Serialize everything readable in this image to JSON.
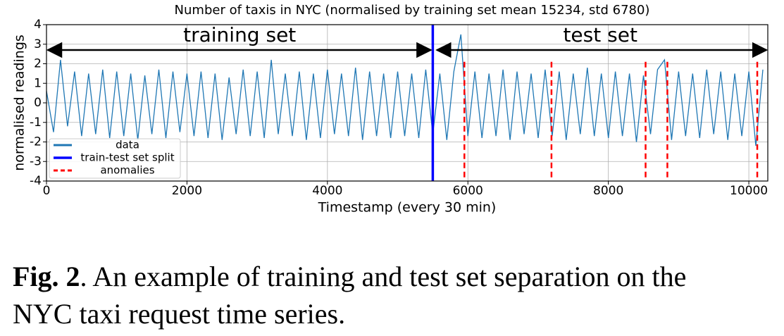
{
  "chart_data": {
    "type": "line",
    "title": "Number of taxis in NYC (normalised by training set mean 15234, std 6780)",
    "xlabel": "Timestamp (every 30 min)",
    "ylabel": "normalised readings",
    "xlim": [
      0,
      10270
    ],
    "ylim": [
      -4,
      4
    ],
    "xticks": [
      0,
      2000,
      4000,
      6000,
      8000,
      10000
    ],
    "yticks": [
      -4,
      -3,
      -2,
      -1,
      0,
      1,
      2,
      3,
      4
    ],
    "grid": true,
    "legend": "lower left",
    "annotations": [
      "training set",
      "test set"
    ],
    "series": [
      {
        "name": "data",
        "color": "#1f77b4",
        "x": [
          0,
          100,
          200,
          300,
          400,
          500,
          600,
          700,
          800,
          900,
          1000,
          1100,
          1200,
          1300,
          1400,
          1500,
          1600,
          1700,
          1800,
          1900,
          2000,
          2100,
          2200,
          2300,
          2400,
          2500,
          2600,
          2700,
          2800,
          2900,
          3000,
          3100,
          3200,
          3300,
          3400,
          3500,
          3600,
          3700,
          3800,
          3900,
          4000,
          4100,
          4200,
          4300,
          4400,
          4500,
          4600,
          4700,
          4800,
          4900,
          5000,
          5100,
          5200,
          5300,
          5400,
          5500,
          5600,
          5700,
          5800,
          5900,
          6000,
          6100,
          6200,
          6300,
          6400,
          6500,
          6600,
          6700,
          6800,
          6900,
          7000,
          7100,
          7200,
          7300,
          7400,
          7500,
          7600,
          7700,
          7800,
          7900,
          8000,
          8100,
          8200,
          8300,
          8400,
          8500,
          8600,
          8700,
          8800,
          8900,
          9000,
          9100,
          9200,
          9300,
          9400,
          9500,
          9600,
          9700,
          9800,
          9900,
          10000,
          10100,
          10200
        ],
        "values": [
          0.6,
          -1.5,
          2.2,
          -1.2,
          1.6,
          -1.7,
          1.5,
          -1.6,
          1.7,
          -1.8,
          1.6,
          -1.7,
          1.5,
          -1.9,
          1.4,
          -1.6,
          1.7,
          -1.8,
          1.6,
          -1.5,
          1.5,
          -1.7,
          1.6,
          -1.8,
          1.5,
          -1.9,
          1.3,
          -1.6,
          1.7,
          -1.7,
          1.6,
          -1.8,
          2.2,
          -1.6,
          1.5,
          -1.7,
          1.6,
          -1.9,
          1.5,
          -1.8,
          1.7,
          -1.6,
          1.5,
          -1.7,
          1.8,
          -1.9,
          1.6,
          -1.7,
          1.5,
          -1.8,
          1.6,
          -1.7,
          1.5,
          -1.8,
          1.7,
          -1.6,
          1.5,
          -1.9,
          1.6,
          3.5,
          -1.7,
          1.6,
          -1.8,
          1.5,
          -1.7,
          1.7,
          -1.9,
          1.6,
          -1.6,
          1.5,
          -1.8,
          1.7,
          -1.7,
          1.6,
          -1.9,
          1.5,
          -1.6,
          1.8,
          -1.7,
          1.5,
          -1.8,
          1.6,
          -1.7,
          1.5,
          -2.0,
          1.4,
          -1.6,
          1.7,
          2.2,
          -1.9,
          1.6,
          -1.7,
          1.5,
          -1.8,
          1.7,
          -1.6,
          1.6,
          -1.9,
          1.5,
          -1.7,
          1.6,
          -2.2,
          1.7
        ]
      }
    ],
    "split": {
      "name": "train-test set split",
      "color": "#0000ff",
      "x": 5500
    },
    "anomalies": {
      "name": "anomalies",
      "color": "#ff0000",
      "x": [
        5950,
        7190,
        8530,
        8840,
        10120
      ]
    }
  },
  "caption": {
    "label": "Fig. 2",
    "lines": [
      ". An example of training and test set separation on the",
      "NYC taxi request time series."
    ]
  }
}
